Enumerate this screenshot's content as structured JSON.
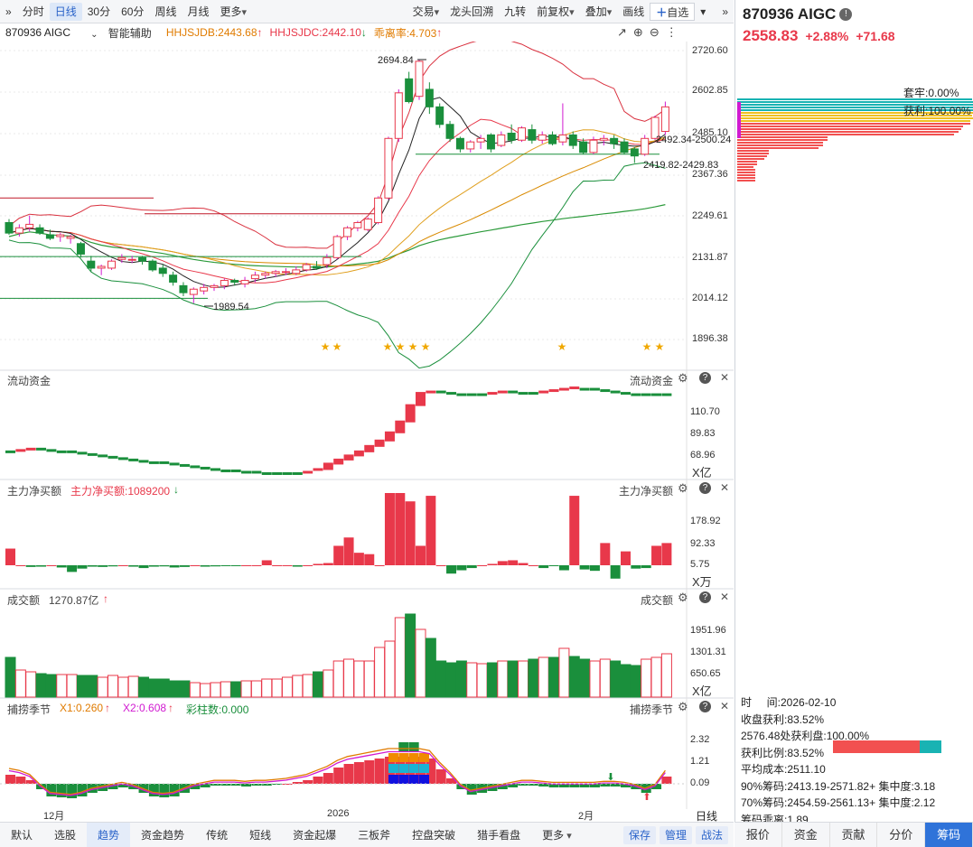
{
  "toolbar": {
    "left": [
      "分时",
      "日线",
      "30分",
      "60分",
      "周线",
      "月线",
      "更多"
    ],
    "active": "日线",
    "right": [
      "交易",
      "龙头回溯",
      "九转",
      "前复权",
      "叠加",
      "画线"
    ],
    "watch": "自选"
  },
  "header": {
    "code": "870936 AIGC",
    "assist": "智能辅助",
    "hhjsjdb": "HHJSJDB:2443.68",
    "hhjsjdc": "HHJSJDC:2442.10",
    "deviation": "乖离率:4.703"
  },
  "price_axis": [
    "2720.60",
    "2602.85",
    "2485.10",
    "2367.36",
    "2249.61",
    "2131.87",
    "2014.12",
    "1896.38"
  ],
  "annotations": {
    "high": "2694.84",
    "low": "1989.54",
    "range1": "2492.34-2500.24",
    "range2": "2419.82-2429.83"
  },
  "flow": {
    "label": "流动资金",
    "label_right": "流动资金",
    "axis": [
      "110.70",
      "89.83",
      "68.96"
    ],
    "unit": "X亿"
  },
  "main_force": {
    "label": "主力净买额",
    "value": "主力净买额:1089200",
    "label_right": "主力净买额",
    "axis": [
      "178.92",
      "92.33",
      "5.75"
    ],
    "unit": "X万"
  },
  "volume": {
    "label": "成交额",
    "value": "1270.87亿",
    "label_right": "成交额",
    "axis": [
      "1951.96",
      "1301.31",
      "650.65"
    ],
    "unit": "X亿"
  },
  "season": {
    "label": "捕捞季节",
    "x1": "X1:0.260",
    "x2": "X2:0.608",
    "bar": "彩柱数:0.000",
    "label_right": "捕捞季节",
    "axis": [
      "2.32",
      "1.21",
      "0.09"
    ]
  },
  "date_axis": {
    "d1": "12月",
    "d2": "2026",
    "d3": "2月"
  },
  "bottom_tabs": [
    "默认",
    "选股",
    "趋势",
    "资金趋势",
    "传统",
    "短线",
    "资金起爆",
    "三板斧",
    "控盘突破",
    "猎手看盘",
    "更多"
  ],
  "bottom_active": "趋势",
  "bottom_buttons": [
    "保存",
    "管理",
    "战法"
  ],
  "sidebar": {
    "title": "870936 AIGC",
    "price": "2558.83",
    "pct": "+2.88%",
    "change": "+71.68",
    "trapped": "套牢:0.00%",
    "profit": "获利:100.00%",
    "daily_label": "日线",
    "time_label": "时     间:2026-02-10",
    "stats": [
      "收盘获利:83.52%",
      "2576.48处获利盘:100.00%",
      "获利比例:83.52%",
      "平均成本:2511.10",
      "90%筹码:2413.19-2571.82+ 集中度:3.18",
      "70%筹码:2454.59-2561.13+ 集中度:2.12",
      "筹码乖离:1.89"
    ],
    "tabs": [
      "报价",
      "资金",
      "贡献",
      "分价",
      "筹码"
    ],
    "active_tab": "筹码"
  },
  "colors": {
    "up": "#e8384a",
    "down": "#1a8f3c",
    "accent": "#2a63c9"
  },
  "chart_data": {
    "type": "candlestick",
    "ylim": [
      1896.38,
      2720.6
    ],
    "candles": [
      [
        2230,
        2200,
        2240,
        2195
      ],
      [
        2200,
        2215,
        2225,
        2190
      ],
      [
        2215,
        2225,
        2250,
        2205
      ],
      [
        2215,
        2200,
        2225,
        2195
      ],
      [
        2195,
        2185,
        2210,
        2180
      ],
      [
        2190,
        2195,
        2200,
        2175
      ],
      [
        2185,
        2190,
        2195,
        2170
      ],
      [
        2170,
        2140,
        2175,
        2130
      ],
      [
        2120,
        2100,
        2135,
        2090
      ],
      [
        2100,
        2105,
        2110,
        2080
      ],
      [
        2100,
        2120,
        2125,
        2095
      ],
      [
        2125,
        2130,
        2140,
        2115
      ],
      [
        2125,
        2125,
        2135,
        2115
      ],
      [
        2130,
        2120,
        2135,
        2110
      ],
      [
        2120,
        2095,
        2125,
        2090
      ],
      [
        2100,
        2085,
        2110,
        2075
      ],
      [
        2080,
        2060,
        2090,
        2050
      ],
      [
        2050,
        2030,
        2060,
        2020
      ],
      [
        2025,
        2040,
        2045,
        2000
      ],
      [
        2035,
        2045,
        2055,
        2025
      ],
      [
        2045,
        2050,
        2055,
        2035
      ],
      [
        2050,
        2065,
        2070,
        2040
      ],
      [
        2065,
        2060,
        2070,
        2050
      ],
      [
        2055,
        2065,
        2075,
        2045
      ],
      [
        2070,
        2080,
        2090,
        2060
      ],
      [
        2080,
        2085,
        2090,
        2070
      ],
      [
        2085,
        2090,
        2095,
        2075
      ],
      [
        2090,
        2090,
        2100,
        2080
      ],
      [
        2085,
        2095,
        2105,
        2080
      ],
      [
        2095,
        2110,
        2115,
        2090
      ],
      [
        2105,
        2100,
        2120,
        2095
      ],
      [
        2110,
        2130,
        2140,
        2100
      ],
      [
        2130,
        2190,
        2195,
        2125
      ],
      [
        2190,
        2215,
        2220,
        2180
      ],
      [
        2215,
        2230,
        2235,
        2205
      ],
      [
        2210,
        2240,
        2245,
        2205
      ],
      [
        2230,
        2300,
        2305,
        2225
      ],
      [
        2300,
        2470,
        2475,
        2295
      ],
      [
        2470,
        2600,
        2610,
        2460
      ],
      [
        2640,
        2575,
        2660,
        2570
      ],
      [
        2590,
        2690,
        2695,
        2580
      ],
      [
        2610,
        2560,
        2630,
        2540
      ],
      [
        2560,
        2510,
        2570,
        2500
      ],
      [
        2510,
        2470,
        2520,
        2460
      ],
      [
        2470,
        2440,
        2475,
        2430
      ],
      [
        2440,
        2460,
        2465,
        2430
      ],
      [
        2460,
        2470,
        2480,
        2440
      ],
      [
        2480,
        2440,
        2485,
        2430
      ],
      [
        2450,
        2480,
        2490,
        2445
      ],
      [
        2485,
        2465,
        2510,
        2455
      ],
      [
        2465,
        2500,
        2505,
        2460
      ],
      [
        2495,
        2465,
        2510,
        2455
      ],
      [
        2465,
        2480,
        2490,
        2455
      ],
      [
        2480,
        2455,
        2490,
        2450
      ],
      [
        2460,
        2480,
        2570,
        2450
      ],
      [
        2480,
        2450,
        2490,
        2440
      ],
      [
        2460,
        2430,
        2470,
        2425
      ],
      [
        2430,
        2465,
        2475,
        2425
      ],
      [
        2465,
        2470,
        2480,
        2450
      ],
      [
        2470,
        2455,
        2480,
        2440
      ],
      [
        2460,
        2430,
        2470,
        2425
      ],
      [
        2440,
        2420,
        2445,
        2400
      ],
      [
        2425,
        2470,
        2480,
        2420
      ],
      [
        2470,
        2530,
        2535,
        2465
      ],
      [
        2490,
        2560,
        2575,
        2480
      ]
    ]
  }
}
